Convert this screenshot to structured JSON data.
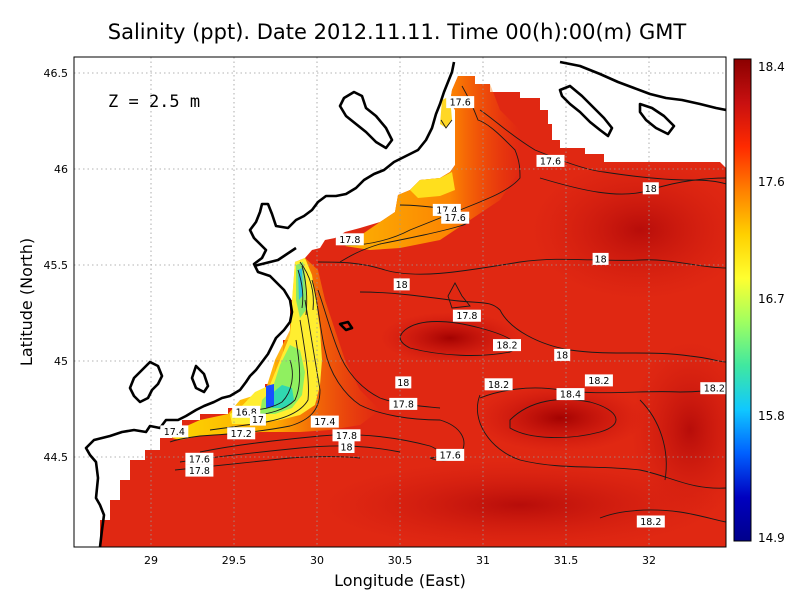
{
  "title": "Salinity (ppt). Date 2012.11.11. Time 00(h):00(m) GMT",
  "depth_label": "Z = 2.5 m",
  "x_axis": {
    "label": "Longitude (East)",
    "ticks": [
      "29",
      "29.5",
      "30",
      "30.5",
      "31",
      "31.5",
      "32"
    ]
  },
  "y_axis": {
    "label": "Latitude (North)",
    "ticks": [
      "44.5",
      "45",
      "45.5",
      "46",
      "46.5"
    ]
  },
  "colorbar": {
    "ticks": [
      "18.4",
      "17.6",
      "16.7",
      "15.8",
      "14.9"
    ],
    "colors": [
      "#8b0000",
      "#c81010",
      "#ff2a00",
      "#ff8000",
      "#ffd000",
      "#ffff30",
      "#a0ff60",
      "#40e8a0",
      "#10c8ff",
      "#0060ff",
      "#0000c0",
      "#00008b"
    ]
  },
  "chart_data": {
    "type": "heatmap",
    "title": "Salinity (ppt). Date 2012.11.11. Time 00(h):00(m) GMT",
    "xlabel": "Longitude (East)",
    "ylabel": "Latitude (North)",
    "xlim": [
      28.55,
      32.45
    ],
    "ylim": [
      44.05,
      46.55
    ],
    "color_range": [
      14.9,
      18.4
    ],
    "grid": true,
    "contour_labels": [
      {
        "lon": 30.86,
        "lat": 46.32,
        "value": "17.6"
      },
      {
        "lon": 31.4,
        "lat": 46.02,
        "value": "17.6"
      },
      {
        "lon": 32.0,
        "lat": 45.88,
        "value": "18"
      },
      {
        "lon": 30.78,
        "lat": 45.77,
        "value": "17.4"
      },
      {
        "lon": 30.83,
        "lat": 45.73,
        "value": "17.6"
      },
      {
        "lon": 30.2,
        "lat": 45.62,
        "value": "17.8"
      },
      {
        "lon": 31.7,
        "lat": 45.52,
        "value": "18"
      },
      {
        "lon": 30.51,
        "lat": 45.39,
        "value": "18"
      },
      {
        "lon": 30.9,
        "lat": 45.23,
        "value": "17.8"
      },
      {
        "lon": 31.14,
        "lat": 45.08,
        "value": "18.2"
      },
      {
        "lon": 31.47,
        "lat": 45.03,
        "value": "18"
      },
      {
        "lon": 30.52,
        "lat": 44.89,
        "value": "18"
      },
      {
        "lon": 31.09,
        "lat": 44.88,
        "value": "18.2"
      },
      {
        "lon": 31.69,
        "lat": 44.9,
        "value": "18.2"
      },
      {
        "lon": 31.52,
        "lat": 44.83,
        "value": "18.4"
      },
      {
        "lon": 32.38,
        "lat": 44.86,
        "value": "18.2"
      },
      {
        "lon": 30.52,
        "lat": 44.78,
        "value": "17.8"
      },
      {
        "lon": 29.58,
        "lat": 44.74,
        "value": "16.8"
      },
      {
        "lon": 29.65,
        "lat": 44.7,
        "value": "17"
      },
      {
        "lon": 30.05,
        "lat": 44.69,
        "value": "17.4"
      },
      {
        "lon": 30.18,
        "lat": 44.62,
        "value": "17.8"
      },
      {
        "lon": 30.18,
        "lat": 44.56,
        "value": "18"
      },
      {
        "lon": 29.15,
        "lat": 44.64,
        "value": "17.4"
      },
      {
        "lon": 29.55,
        "lat": 44.63,
        "value": "17.2"
      },
      {
        "lon": 29.3,
        "lat": 44.5,
        "value": "17.6"
      },
      {
        "lon": 29.3,
        "lat": 44.44,
        "value": "17.8"
      },
      {
        "lon": 30.8,
        "lat": 44.52,
        "value": "17.6"
      },
      {
        "lon": 32.0,
        "lat": 44.18,
        "value": "18.2"
      }
    ]
  }
}
